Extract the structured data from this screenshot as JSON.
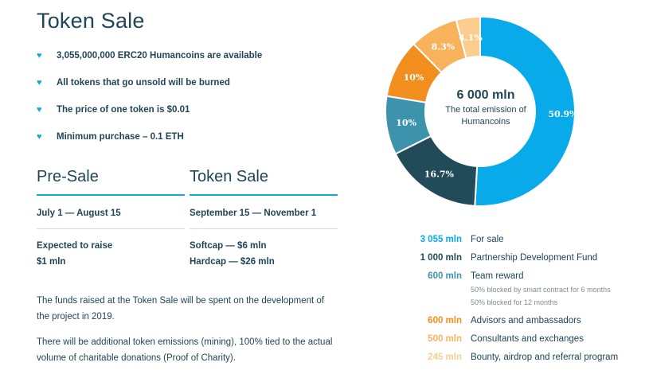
{
  "header": {
    "title": "Token Sale"
  },
  "bullets": [
    "3,055,000,000 ERC20 Humancoins are available",
    "All tokens that go unsold will be burned",
    "The price of one token is $0.01",
    "Minimum purchase – 0.1 ETH"
  ],
  "presale": {
    "title": "Pre-Sale",
    "dates": "July 1 — August 15",
    "line1": "Expected to raise",
    "line2": "$1 mln"
  },
  "tokensale": {
    "title": "Token Sale",
    "dates": "September 15 — November 1",
    "line1": "Softcap — $6 mln",
    "line2": "Hardcap — $26 mln"
  },
  "paragraphs": [
    "The funds raised at the Token Sale will be spent on the development of the project in 2019.",
    "There will be additional token emissions (mining), 100% tied to the actual volume of charitable donations (Proof of Charity)."
  ],
  "center": {
    "value": "6 000 mln",
    "label": "The total emission of Humancoins"
  },
  "colors": {
    "bullet_icon": "#15a8e0",
    "accent_rule": "#15a8e0",
    "text": "#1f4656"
  },
  "chart_data": {
    "type": "pie",
    "donut": true,
    "total": "6 000 mln",
    "slices": [
      {
        "value_label": "3 055 mln",
        "label": "For sale",
        "percent": 50.9,
        "pct_label": "50.9%",
        "color": "#08aaea"
      },
      {
        "value_label": "1 000 mln",
        "label": "Partnership Development Fund",
        "percent": 16.7,
        "pct_label": "16.7%",
        "color": "#224b5a"
      },
      {
        "value_label": "600 mln",
        "label": "Team reward",
        "percent": 10,
        "pct_label": "10%",
        "color": "#3d93ac",
        "notes": [
          "50% blocked by smart contract for 6 months",
          "50% blocked for 12 months"
        ]
      },
      {
        "value_label": "600 mln",
        "label": "Advisors and ambassadors",
        "percent": 10,
        "pct_label": "10%",
        "color": "#f28e1e"
      },
      {
        "value_label": "500 mln",
        "label": "Consultants and exchanges",
        "percent": 8.3,
        "pct_label": "8.3%",
        "color": "#f8b25b"
      },
      {
        "value_label": "245 mln",
        "label": "Bounty, airdrop and referral program",
        "percent": 4.1,
        "pct_label": "4.1%",
        "color": "#fbcd8e"
      }
    ]
  }
}
